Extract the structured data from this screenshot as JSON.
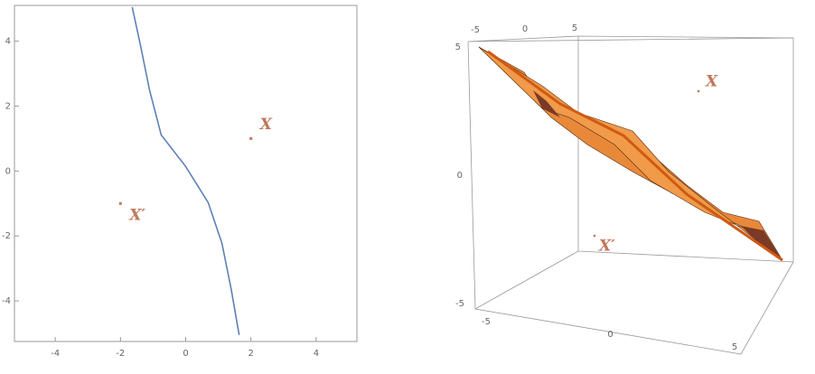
{
  "chart_data": [
    {
      "type": "line",
      "x": [
        -1.64,
        -1.39,
        -1.11,
        -0.75,
        0,
        0.69,
        1.11,
        1.39,
        1.64
      ],
      "series": [
        {
          "color": "#5e81b5",
          "values": [
            5.05,
            3.89,
            2.5,
            1.11,
            0.14,
            -0.97,
            -2.22,
            -3.61,
            -5.05
          ]
        }
      ],
      "points": [
        {
          "label": "X",
          "x": 2,
          "y": 1
        },
        {
          "label": "X′",
          "x": -2,
          "y": -1
        }
      ],
      "point_color": "#c0785a",
      "xlim": [
        -5.25,
        5.25
      ],
      "ylim": [
        -5.25,
        5.1
      ],
      "xticks": [
        -4,
        -2,
        0,
        2,
        4
      ],
      "yticks": [
        -4,
        -2,
        0,
        2,
        4
      ]
    },
    {
      "type": "surface3d",
      "color": "#e0822c",
      "labels": [
        "X",
        "X′"
      ],
      "xlim": [
        -5,
        5
      ],
      "ylim": [
        -5,
        5
      ],
      "zlim": [
        -5,
        5
      ],
      "xticks": [
        -5,
        0,
        5
      ],
      "yticks": [
        -5,
        0,
        5
      ],
      "zticks": [
        -5,
        0,
        5
      ]
    }
  ]
}
